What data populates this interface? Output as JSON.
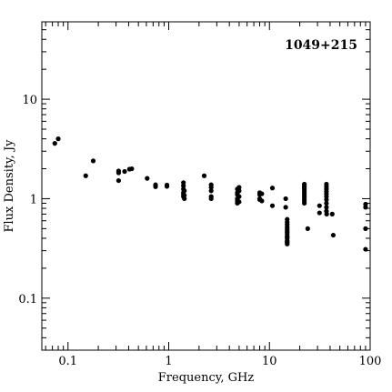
{
  "chart_data": {
    "type": "scatter",
    "title": "1049+215",
    "xlabel": "Frequency, GHz",
    "ylabel": "Flux Density, Jy",
    "xscale": "log",
    "yscale": "log",
    "xlim": [
      0.055,
      100
    ],
    "ylim": [
      0.03,
      60
    ],
    "x_ticks": [
      0.1,
      1,
      10,
      100
    ],
    "x_tick_labels": [
      "0.1",
      "1",
      "10",
      "100"
    ],
    "y_ticks": [
      0.1,
      1,
      10
    ],
    "y_tick_labels": [
      "0.1",
      "1",
      "10"
    ],
    "grid": false,
    "legend": "none",
    "marker_color": "#000000",
    "series": [
      {
        "points": [
          [
            0.074,
            3.6
          ],
          [
            0.08,
            4.0
          ],
          [
            0.15,
            1.7
          ],
          [
            0.178,
            2.4
          ],
          [
            0.318,
            1.9
          ],
          [
            0.318,
            1.82
          ],
          [
            0.318,
            1.52
          ],
          [
            0.365,
            1.88
          ],
          [
            0.408,
            1.98
          ],
          [
            0.43,
            2.0
          ],
          [
            0.611,
            1.6
          ],
          [
            0.74,
            1.38
          ],
          [
            0.74,
            1.32
          ],
          [
            0.96,
            1.37
          ],
          [
            0.96,
            1.33
          ],
          [
            1.4,
            1.45
          ],
          [
            1.4,
            1.35
          ],
          [
            1.4,
            1.25
          ],
          [
            1.4,
            1.15
          ],
          [
            1.4,
            1.1
          ],
          [
            1.4,
            1.05
          ],
          [
            1.43,
            1.2
          ],
          [
            1.43,
            1.08
          ],
          [
            1.43,
            1.0
          ],
          [
            2.25,
            1.7
          ],
          [
            2.64,
            1.38
          ],
          [
            2.64,
            1.3
          ],
          [
            2.64,
            1.2
          ],
          [
            2.64,
            1.05
          ],
          [
            2.64,
            1.0
          ],
          [
            4.8,
            1.25
          ],
          [
            4.8,
            1.15
          ],
          [
            4.8,
            1.1
          ],
          [
            4.8,
            1.0
          ],
          [
            4.8,
            0.95
          ],
          [
            4.8,
            0.9
          ],
          [
            5.0,
            1.3
          ],
          [
            5.0,
            1.2
          ],
          [
            5.0,
            1.05
          ],
          [
            5.0,
            0.93
          ],
          [
            8.0,
            1.15
          ],
          [
            8.0,
            1.1
          ],
          [
            8.0,
            1.0
          ],
          [
            8.0,
            0.98
          ],
          [
            8.4,
            1.12
          ],
          [
            8.4,
            0.95
          ],
          [
            10.7,
            1.28
          ],
          [
            10.7,
            0.85
          ],
          [
            14.5,
            1.0
          ],
          [
            14.5,
            0.82
          ],
          [
            15.0,
            0.62
          ],
          [
            15.0,
            0.58
          ],
          [
            15.0,
            0.55
          ],
          [
            15.0,
            0.52
          ],
          [
            15.0,
            0.5
          ],
          [
            15.0,
            0.48
          ],
          [
            15.0,
            0.46
          ],
          [
            15.0,
            0.44
          ],
          [
            15.0,
            0.42
          ],
          [
            15.0,
            0.41
          ],
          [
            15.0,
            0.4
          ],
          [
            15.0,
            0.38
          ],
          [
            15.0,
            0.37
          ],
          [
            15.0,
            0.36
          ],
          [
            15.0,
            0.35
          ],
          [
            22.2,
            1.4
          ],
          [
            22.2,
            1.35
          ],
          [
            22.2,
            1.3
          ],
          [
            22.2,
            1.25
          ],
          [
            22.2,
            1.2
          ],
          [
            22.2,
            1.15
          ],
          [
            22.2,
            1.1
          ],
          [
            22.2,
            1.05
          ],
          [
            22.2,
            1.0
          ],
          [
            22.2,
            0.95
          ],
          [
            22.2,
            0.9
          ],
          [
            24.0,
            0.5
          ],
          [
            31.4,
            0.85
          ],
          [
            31.4,
            0.72
          ],
          [
            36.8,
            1.4
          ],
          [
            36.8,
            1.32
          ],
          [
            36.8,
            1.25
          ],
          [
            36.8,
            1.18
          ],
          [
            36.8,
            1.12
          ],
          [
            36.8,
            1.05
          ],
          [
            36.8,
            0.98
          ],
          [
            36.8,
            0.9
          ],
          [
            36.8,
            0.82
          ],
          [
            36.8,
            0.75
          ],
          [
            37.0,
            0.7
          ],
          [
            42.0,
            0.7
          ],
          [
            43.0,
            0.43
          ],
          [
            90.0,
            0.88
          ],
          [
            90.0,
            0.82
          ],
          [
            90.0,
            0.5
          ],
          [
            90.0,
            0.31
          ]
        ]
      }
    ]
  }
}
